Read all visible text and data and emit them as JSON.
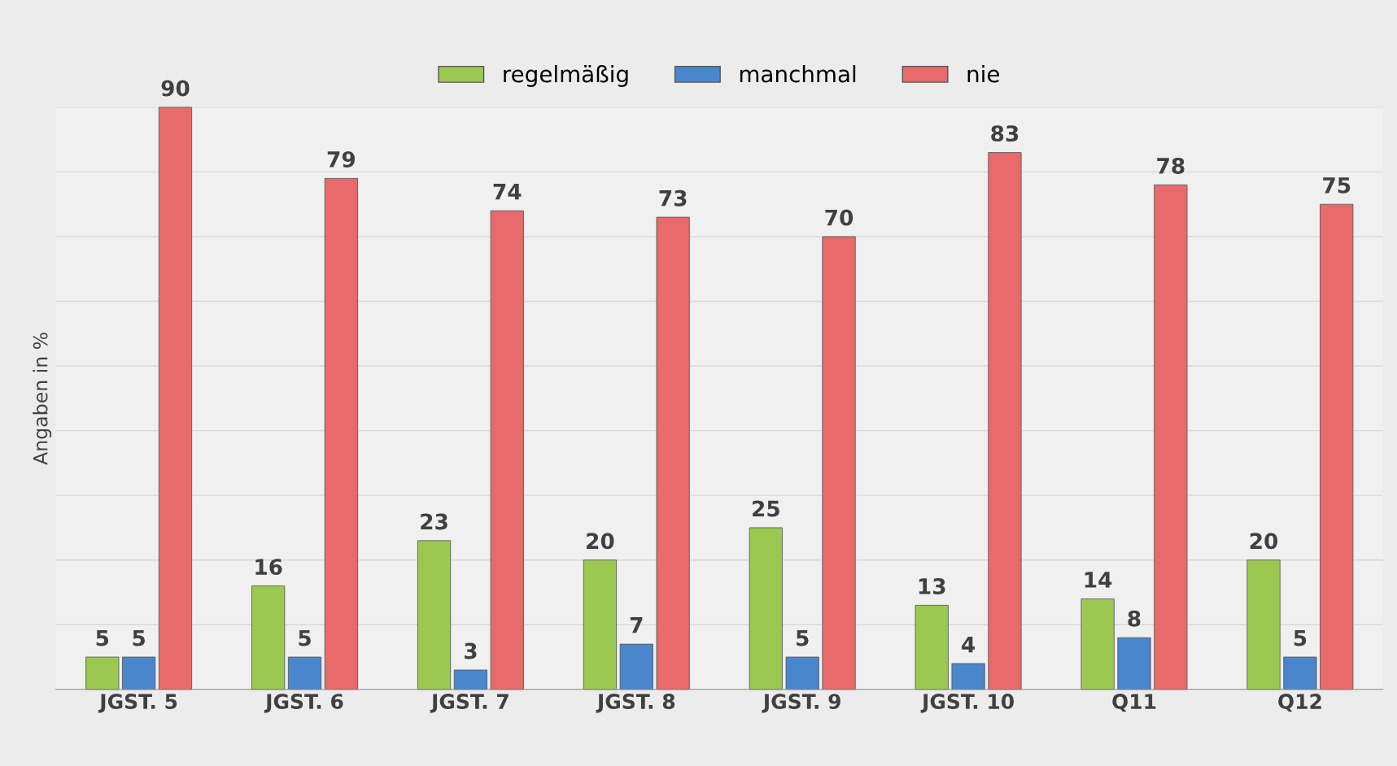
{
  "chart_data": {
    "type": "bar",
    "ylabel": "Angaben in %",
    "categories": [
      "JGST. 5",
      "JGST. 6",
      "JGST. 7",
      "JGST. 8",
      "JGST. 9",
      "JGST. 10",
      "Q11",
      "Q12"
    ],
    "series": [
      {
        "name": "regelmäßig",
        "color": "#9bc850",
        "values": [
          5,
          16,
          23,
          20,
          25,
          13,
          14,
          20
        ]
      },
      {
        "name": "manchmal",
        "color": "#4a86cc",
        "values": [
          5,
          5,
          3,
          7,
          5,
          4,
          8,
          5
        ]
      },
      {
        "name": "nie",
        "color": "#e86a6a",
        "values": [
          90,
          79,
          74,
          73,
          70,
          83,
          78,
          75
        ]
      }
    ],
    "ylim": [
      0,
      90
    ],
    "yticks": [
      {
        "value": 0,
        "label": null
      },
      {
        "value": 10,
        "label": null
      },
      {
        "value": 20,
        "label": null
      },
      {
        "value": 30,
        "label": null
      },
      {
        "value": 40,
        "label": null
      },
      {
        "value": 50,
        "label": null
      },
      {
        "value": 60,
        "label": null
      },
      {
        "value": 70,
        "label": null
      },
      {
        "value": 80,
        "label": null
      },
      {
        "value": 90,
        "label": null
      }
    ],
    "tick_labels": "x",
    "grid": "y",
    "data_labels": true,
    "legend": "top"
  }
}
